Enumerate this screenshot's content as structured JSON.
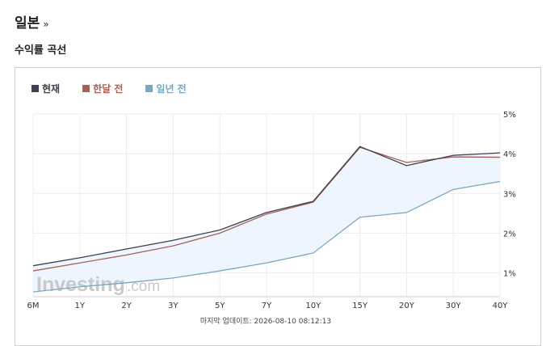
{
  "header": {
    "title": "일본",
    "arrow": "»"
  },
  "section_title": "수익률 곡선",
  "watermark": {
    "brand": "Investing",
    "suffix": ".com"
  },
  "update_text": "마지막 업데이트: 2026-08-10 08:12:13",
  "chart_data": {
    "type": "line",
    "categories": [
      "6M",
      "1Y",
      "2Y",
      "3Y",
      "5Y",
      "7Y",
      "10Y",
      "15Y",
      "20Y",
      "30Y",
      "40Y"
    ],
    "y_ticks": [
      "1%",
      "2%",
      "3%",
      "4%",
      "5%"
    ],
    "ylim": [
      0.4,
      5.0
    ],
    "y_axis_side": "right",
    "grid": true,
    "legend_position": "top-left",
    "series": [
      {
        "name": "현재",
        "color": "#3c3f4c",
        "values": [
          1.18,
          1.38,
          1.6,
          1.82,
          2.08,
          2.52,
          2.8,
          4.18,
          3.7,
          3.96,
          4.02
        ]
      },
      {
        "name": "한달 전",
        "color": "#a5605a",
        "values": [
          1.05,
          1.25,
          1.45,
          1.68,
          2.0,
          2.48,
          2.78,
          4.16,
          3.78,
          3.92,
          3.91
        ]
      },
      {
        "name": "일년 전",
        "color": "#77a8c0",
        "fill": "#eef5fd",
        "values": [
          0.52,
          0.65,
          0.75,
          0.87,
          1.05,
          1.25,
          1.5,
          2.4,
          2.52,
          3.1,
          3.3
        ]
      }
    ]
  }
}
